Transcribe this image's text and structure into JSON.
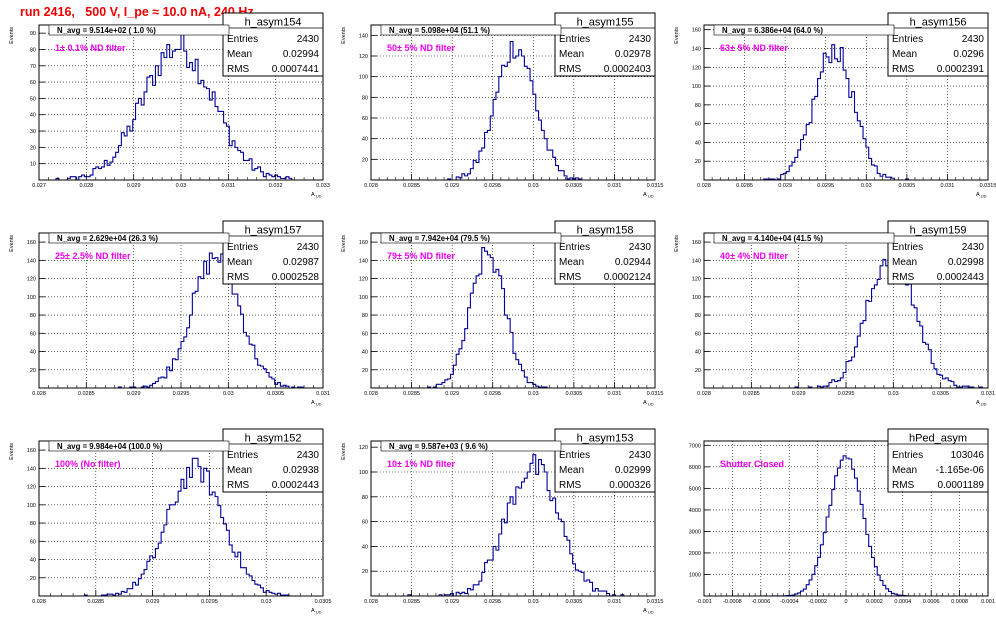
{
  "page": {
    "title": "run 2416,   500 V, I_pe ≈ 10.0 nA, 240 Hz",
    "colors": {
      "title": "#ee0000",
      "histogram": "#000099",
      "filter_label": "#ee00ee",
      "frame": "#000000",
      "grid": "#000000"
    }
  },
  "chart_data": [
    {
      "type": "histogram",
      "name": "h_asym154",
      "stats": {
        "entries": "2430",
        "mean": "0.02994",
        "rms": "0.0007441"
      },
      "n_avg": "N_avg = 9.514e+02 ( 1.0 %)",
      "label": "1± 0.1% ND filter",
      "xlabel": "A_UD",
      "ylabel": "Events",
      "xlim": [
        0.027,
        0.033
      ],
      "ylim": [
        0,
        95
      ],
      "xticks": [
        "0.027",
        "0.028",
        "0.029",
        "0.03",
        "0.031",
        "0.032",
        "0.033"
      ],
      "xtick_values": [
        0.027,
        0.028,
        0.029,
        0.03,
        0.031,
        0.032,
        0.033
      ],
      "yticks": [
        10,
        20,
        30,
        40,
        50,
        60,
        70,
        80,
        90
      ],
      "mean": 0.02994,
      "sigma": 0.0007441,
      "peak": 88
    },
    {
      "type": "histogram",
      "name": "h_asym155",
      "stats": {
        "entries": "2430",
        "mean": "0.02978",
        "rms": "0.0002403"
      },
      "n_avg": "N_avg = 5.098e+04 (51.1 %)",
      "label": "50± 5% ND filter",
      "xlabel": "A_UD",
      "ylabel": "Events",
      "xlim": [
        0.028,
        0.0315
      ],
      "ylim": [
        0,
        150
      ],
      "xticks": [
        "0.028",
        "0.0285",
        "0.029",
        "0.0295",
        "0.03",
        "0.0305",
        "0.031",
        "0.0315"
      ],
      "xtick_values": [
        0.028,
        0.0285,
        0.029,
        0.0295,
        0.03,
        0.0305,
        0.031,
        0.0315
      ],
      "yticks": [
        20,
        40,
        60,
        80,
        100,
        120,
        140
      ],
      "mean": 0.02978,
      "sigma": 0.0002403,
      "peak": 140
    },
    {
      "type": "histogram",
      "name": "h_asym156",
      "stats": {
        "entries": "2430",
        "mean": "0.0296",
        "rms": "0.0002391"
      },
      "n_avg": "N_avg = 6.386e+04 (64.0 %)",
      "label": "63± 5% ND filter",
      "xlabel": "A_UD",
      "ylabel": "Events",
      "xlim": [
        0.028,
        0.0315
      ],
      "ylim": [
        0,
        165
      ],
      "xticks": [
        "0.028",
        "0.0285",
        "0.029",
        "0.0295",
        "0.03",
        "0.0305",
        "0.031",
        "0.0315"
      ],
      "xtick_values": [
        0.028,
        0.0285,
        0.029,
        0.0295,
        0.03,
        0.0305,
        0.031,
        0.0315
      ],
      "yticks": [
        20,
        40,
        60,
        80,
        100,
        120,
        140,
        160
      ],
      "mean": 0.0296,
      "sigma": 0.0002391,
      "peak": 150
    },
    {
      "type": "histogram",
      "name": "h_asym157",
      "stats": {
        "entries": "2430",
        "mean": "0.02987",
        "rms": "0.0002528"
      },
      "n_avg": "N_avg = 2.629e+04 (26.3 %)",
      "label": "25± 2.5% ND filter",
      "xlabel": "A_UD",
      "ylabel": "Events",
      "xlim": [
        0.028,
        0.031
      ],
      "ylim": [
        0,
        170
      ],
      "xticks": [
        "0.028",
        "0.0285",
        "0.029",
        "0.0295",
        "0.03",
        "0.0305",
        "0.031"
      ],
      "xtick_values": [
        0.028,
        0.0285,
        0.029,
        0.0295,
        0.03,
        0.0305,
        0.031
      ],
      "yticks": [
        20,
        40,
        60,
        80,
        100,
        120,
        140,
        160
      ],
      "mean": 0.02987,
      "sigma": 0.0002528,
      "peak": 155
    },
    {
      "type": "histogram",
      "name": "h_asym158",
      "stats": {
        "entries": "2430",
        "mean": "0.02944",
        "rms": "0.0002124"
      },
      "n_avg": "N_avg = 7.942e+04 (79.5 %)",
      "label": "79± 5% ND filter",
      "xlabel": "A_UD",
      "ylabel": "Events",
      "xlim": [
        0.028,
        0.0315
      ],
      "ylim": [
        0,
        170
      ],
      "xticks": [
        "0.028",
        "0.0285",
        "0.029",
        "0.0295",
        "0.03",
        "0.0305",
        "0.031",
        "0.0315"
      ],
      "xtick_values": [
        0.028,
        0.0285,
        0.029,
        0.0295,
        0.03,
        0.0305,
        0.031,
        0.0315
      ],
      "yticks": [
        20,
        40,
        60,
        80,
        100,
        120,
        140,
        160
      ],
      "mean": 0.02944,
      "sigma": 0.0002124,
      "peak": 158
    },
    {
      "type": "histogram",
      "name": "h_asym159",
      "stats": {
        "entries": "2430",
        "mean": "0.02998",
        "rms": "0.0002443"
      },
      "n_avg": "N_avg = 4.140e+04 (41.5 %)",
      "label": "40± 4% ND filter",
      "xlabel": "A_UD",
      "ylabel": "Events",
      "xlim": [
        0.028,
        0.031
      ],
      "ylim": [
        0,
        170
      ],
      "xticks": [
        "0.028",
        "0.0285",
        "0.029",
        "0.0295",
        "0.03",
        "0.0305",
        "0.031"
      ],
      "xtick_values": [
        0.028,
        0.0285,
        0.029,
        0.0295,
        0.03,
        0.0305,
        0.031
      ],
      "yticks": [
        20,
        40,
        60,
        80,
        100,
        120,
        140,
        160
      ],
      "mean": 0.02998,
      "sigma": 0.0002443,
      "peak": 160
    },
    {
      "type": "histogram",
      "name": "h_asym152",
      "stats": {
        "entries": "2430",
        "mean": "0.02938",
        "rms": "0.0002443"
      },
      "n_avg": "N_avg = 9.984e+04 (100.0 %)",
      "label": "100% (No filter)",
      "xlabel": "A_UD",
      "ylabel": "Events",
      "xlim": [
        0.028,
        0.0305
      ],
      "ylim": [
        0,
        170
      ],
      "xticks": [
        "0.028",
        "0.0285",
        "0.029",
        "0.0295",
        "0.03",
        "0.0305"
      ],
      "xtick_values": [
        0.028,
        0.0285,
        0.029,
        0.0295,
        0.03,
        0.0305
      ],
      "yticks": [
        20,
        40,
        60,
        80,
        100,
        120,
        140,
        160
      ],
      "mean": 0.02938,
      "sigma": 0.0002443,
      "peak": 150
    },
    {
      "type": "histogram",
      "name": "h_asym153",
      "stats": {
        "entries": "2430",
        "mean": "0.02999",
        "rms": "0.000326"
      },
      "n_avg": "N_avg = 9.587e+03 ( 9.6 %)",
      "label": "10± 1% ND filter",
      "xlabel": "A_UD",
      "ylabel": "Events",
      "xlim": [
        0.028,
        0.0315
      ],
      "ylim": [
        0,
        125
      ],
      "xticks": [
        "0.028",
        "0.0285",
        "0.029",
        "0.0295",
        "0.03",
        "0.0305",
        "0.031",
        "0.0315"
      ],
      "xtick_values": [
        0.028,
        0.0285,
        0.029,
        0.0295,
        0.03,
        0.0305,
        0.031,
        0.0315
      ],
      "yticks": [
        20,
        40,
        60,
        80,
        100,
        120
      ],
      "mean": 0.02999,
      "sigma": 0.000326,
      "peak": 112
    },
    {
      "type": "histogram",
      "name": "hPed_asym",
      "stats": {
        "entries": "103046",
        "mean": "-1.165e-06",
        "rms": "0.0001189"
      },
      "n_avg": "",
      "label": "Shutter Closed",
      "xlabel": "",
      "ylabel": "",
      "xlim": [
        -0.001,
        0.001
      ],
      "ylim": [
        0,
        7200
      ],
      "xticks": [
        "-0.001",
        "-0.0008",
        "-0.0006",
        "-0.0004",
        "-0.0002",
        "0",
        "0.0002",
        "0.0004",
        "0.0006",
        "0.0008",
        "0.001"
      ],
      "xtick_values": [
        -0.001,
        -0.0008,
        -0.0006,
        -0.0004,
        -0.0002,
        0,
        0.0002,
        0.0004,
        0.0006,
        0.0008,
        0.001
      ],
      "yticks": [
        1000,
        2000,
        3000,
        4000,
        5000,
        6000,
        7000
      ],
      "mean": -1.165e-06,
      "sigma": 0.0001189,
      "peak": 7000
    }
  ]
}
